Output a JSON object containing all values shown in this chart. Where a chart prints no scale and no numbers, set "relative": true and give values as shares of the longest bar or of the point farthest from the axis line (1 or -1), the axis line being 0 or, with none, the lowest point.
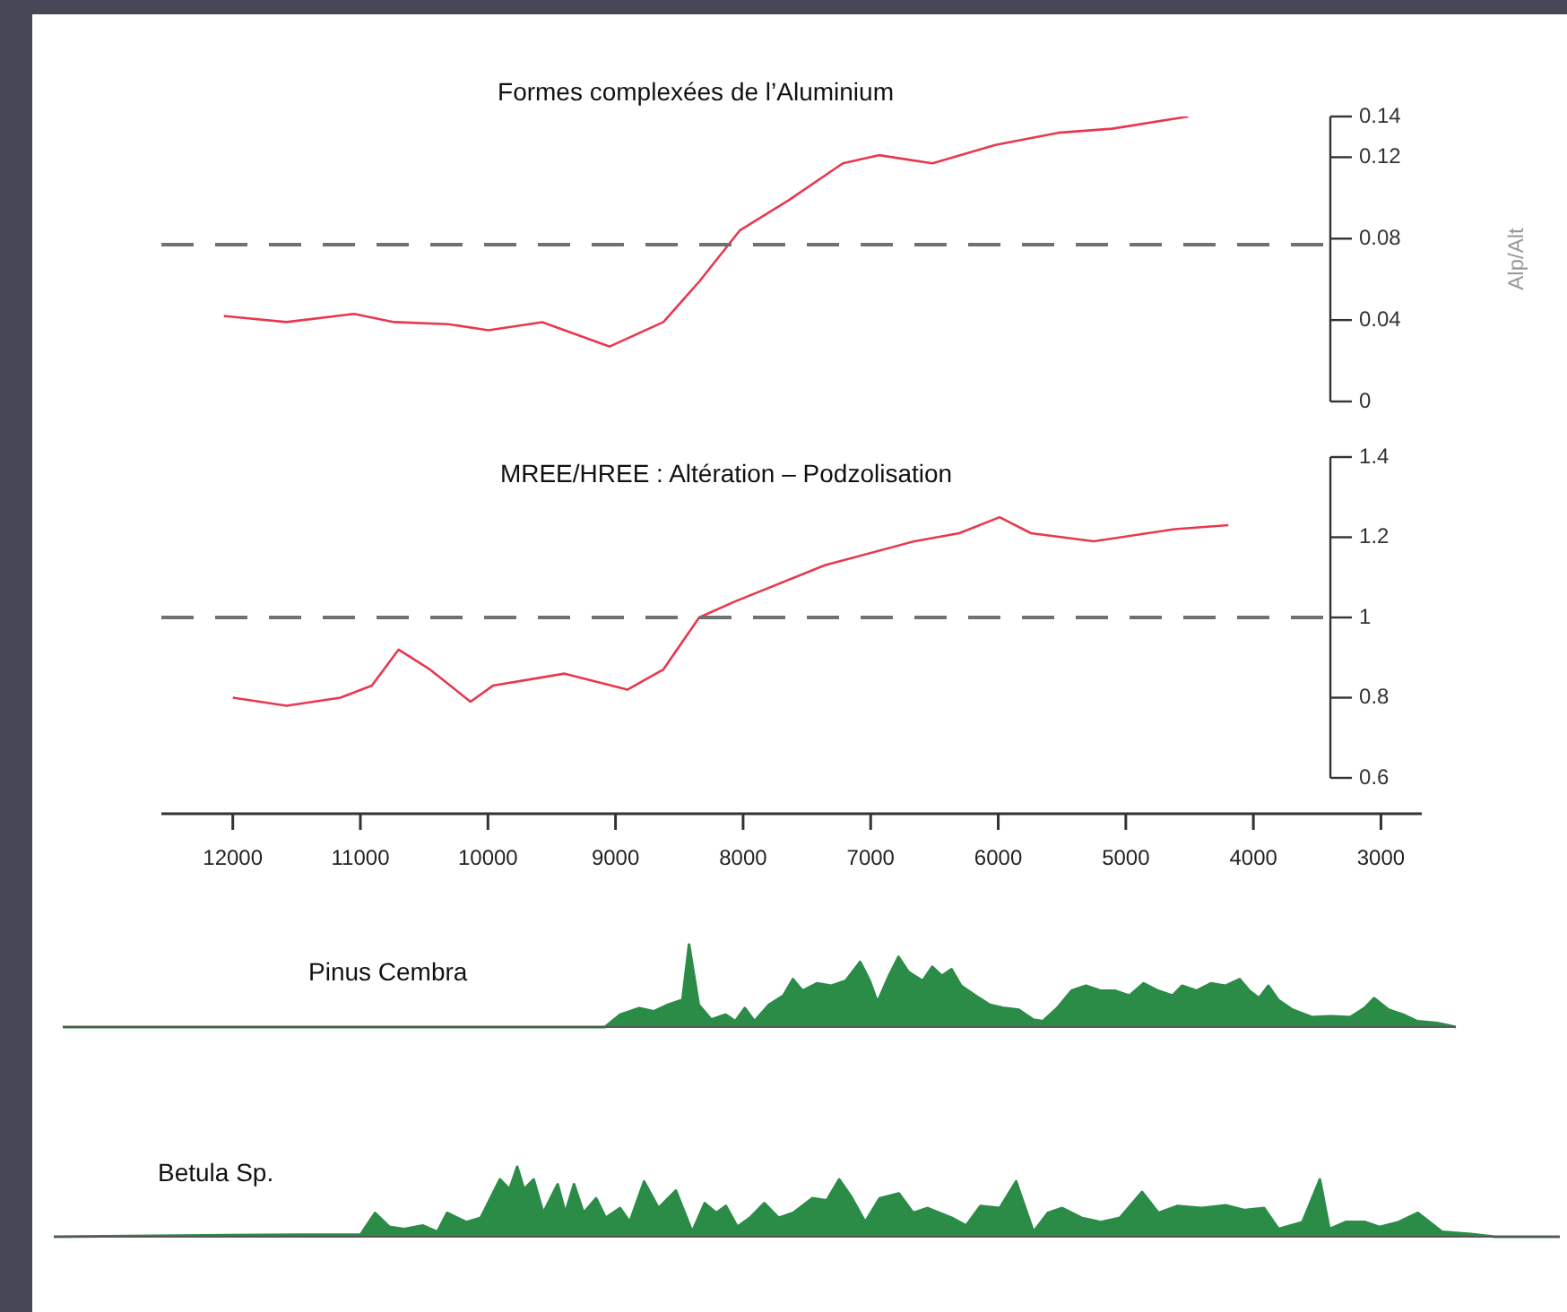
{
  "chart_data": [
    {
      "type": "line",
      "title": "Formes complexées de l’Aluminium",
      "ylabel": "Alp/Alt",
      "x": [
        12070,
        11580,
        11050,
        10735,
        10313,
        9997,
        9575,
        9047,
        8626,
        8344,
        8028,
        7641,
        7220,
        6938,
        6517,
        6025,
        5533,
        5111,
        4513
      ],
      "series": [
        {
          "color": "#e8384f",
          "values": [
            0.042,
            0.039,
            0.043,
            0.039,
            0.038,
            0.035,
            0.039,
            0.027,
            0.039,
            0.059,
            0.084,
            0.099,
            0.117,
            0.121,
            0.117,
            0.126,
            0.132,
            0.134,
            0.14
          ]
        }
      ],
      "xlim": [
        12560,
        3400
      ],
      "xticks": [
        12000,
        11000,
        10000,
        9000,
        8000,
        7000,
        6000,
        5000,
        4000
      ],
      "ylim": [
        0,
        0.14
      ],
      "yticks": [
        0,
        0.04,
        0.08,
        0.12,
        0.14
      ],
      "tick_labels": "y",
      "ref_lines": [
        {
          "axis": "y",
          "value": 0.077,
          "color": "#707070",
          "line_style": "dashed"
        }
      ],
      "legend": false,
      "marker": "none"
    },
    {
      "type": "line",
      "title": "MREE/HREE : Altération – Podzolisation",
      "x": [
        12000,
        11578,
        11156,
        10910,
        10700,
        10453,
        10137,
        9961,
        9399,
        8907,
        8626,
        8344,
        8063,
        7360,
        6657,
        6306,
        5989,
        5743,
        5251,
        4618,
        4196
      ],
      "series": [
        {
          "color": "#e8384f",
          "values": [
            0.8,
            0.78,
            0.8,
            0.83,
            0.92,
            0.87,
            0.79,
            0.83,
            0.86,
            0.82,
            0.87,
            1.0,
            1.04,
            1.13,
            1.19,
            1.21,
            1.25,
            1.21,
            1.19,
            1.22,
            1.23
          ]
        }
      ],
      "xlim": [
        12560,
        2680
      ],
      "xticks": [
        12000,
        11000,
        10000,
        9000,
        8000,
        7000,
        6000,
        5000,
        4000,
        3000
      ],
      "ylim": [
        0.6,
        1.4
      ],
      "yticks": [
        0.6,
        0.8,
        1,
        1.2,
        1.4
      ],
      "ref_lines": [
        {
          "axis": "y",
          "value": 1,
          "color": "#707070",
          "line_style": "dashed"
        }
      ],
      "legend": false,
      "marker": "none"
    },
    {
      "type": "area",
      "title": "Pinus Cembra",
      "relative": true,
      "tick_labels": false,
      "xlim": [
        13330,
        2411
      ],
      "xticks": [
        12000,
        11000,
        10000,
        9000,
        8000,
        7000,
        6000,
        5000,
        4000,
        3000
      ],
      "legend": false,
      "marker": "none",
      "x": [
        13330,
        9080,
        8960,
        8812,
        8699,
        8586,
        8473,
        8421,
        8345,
        8247,
        8134,
        8059,
        7984,
        7908,
        7795,
        7682,
        7607,
        7532,
        7419,
        7306,
        7193,
        7080,
        7005,
        6944,
        6854,
        6779,
        6703,
        6590,
        6515,
        6440,
        6364,
        6289,
        6176,
        6063,
        5950,
        5837,
        5724,
        5649,
        5536,
        5423,
        5310,
        5197,
        5085,
        4971,
        4858,
        4745,
        4632,
        4557,
        4444,
        4331,
        4218,
        4105,
        4030,
        3954,
        3880,
        3804,
        3691,
        3540,
        3390,
        3239,
        3126,
        3051,
        2938,
        2825,
        2712,
        2561,
        2411
      ],
      "series": [
        {
          "color": "#2a8c47",
          "values": [
            0,
            0,
            0.15,
            0.23,
            0.19,
            0.27,
            0.33,
            1,
            0.27,
            0.09,
            0.15,
            0.07,
            0.23,
            0.07,
            0.27,
            0.38,
            0.58,
            0.44,
            0.53,
            0.5,
            0.56,
            0.79,
            0.56,
            0.3,
            0.62,
            0.85,
            0.67,
            0.56,
            0.73,
            0.62,
            0.7,
            0.5,
            0.38,
            0.27,
            0.23,
            0.21,
            0.09,
            0.07,
            0.23,
            0.44,
            0.5,
            0.44,
            0.44,
            0.38,
            0.53,
            0.44,
            0.38,
            0.5,
            0.44,
            0.53,
            0.5,
            0.58,
            0.44,
            0.35,
            0.5,
            0.33,
            0.21,
            0.12,
            0.13,
            0.12,
            0.23,
            0.35,
            0.21,
            0.15,
            0.07,
            0.05,
            0
          ]
        }
      ]
    },
    {
      "type": "area",
      "title": "Betula Sp.",
      "relative": true,
      "tick_labels": false,
      "xlim": [
        13400,
        1600
      ],
      "xticks": [
        12000,
        11000,
        10000,
        9000,
        8000,
        7000,
        6000,
        5000,
        4000,
        3000
      ],
      "legend": false,
      "marker": "none",
      "x": [
        13400,
        11448,
        11147,
        10996,
        10883,
        10770,
        10657,
        10507,
        10394,
        10318,
        10168,
        10055,
        9904,
        9829,
        9769,
        9716,
        9640,
        9565,
        9452,
        9392,
        9324,
        9249,
        9151,
        9076,
        8963,
        8887,
        8775,
        8662,
        8526,
        8398,
        8300,
        8210,
        8134,
        8044,
        7946,
        7833,
        7720,
        7607,
        7457,
        7344,
        7246,
        7155,
        7042,
        6929,
        6779,
        6666,
        6553,
        6365,
        6252,
        6139,
        5988,
        5860,
        5724,
        5611,
        5499,
        5348,
        5197,
        5047,
        4873,
        4745,
        4595,
        4407,
        4218,
        4068,
        3917,
        3804,
        3616,
        3480,
        3405,
        3277,
        3126,
        3013,
        2863,
        2712,
        2524,
        2298,
        2110,
        1600
      ],
      "series": [
        {
          "color": "#2a8c47",
          "values": [
            0,
            0.03,
            0.03,
            0.03,
            0.34,
            0.14,
            0.11,
            0.16,
            0.07,
            0.34,
            0.21,
            0.27,
            0.82,
            0.68,
            1,
            0.68,
            0.82,
            0.34,
            0.75,
            0.34,
            0.75,
            0.34,
            0.55,
            0.27,
            0.41,
            0.21,
            0.79,
            0.41,
            0.66,
            0.07,
            0.48,
            0.34,
            0.44,
            0.14,
            0.27,
            0.48,
            0.27,
            0.34,
            0.55,
            0.52,
            0.82,
            0.58,
            0.21,
            0.55,
            0.62,
            0.34,
            0.41,
            0.27,
            0.16,
            0.44,
            0.41,
            0.79,
            0.07,
            0.34,
            0.41,
            0.27,
            0.21,
            0.27,
            0.64,
            0.34,
            0.44,
            0.41,
            0.45,
            0.38,
            0.41,
            0.11,
            0.21,
            0.82,
            0.11,
            0.21,
            0.21,
            0.14,
            0.21,
            0.34,
            0.07,
            0.04,
            0,
            0
          ]
        }
      ]
    }
  ]
}
